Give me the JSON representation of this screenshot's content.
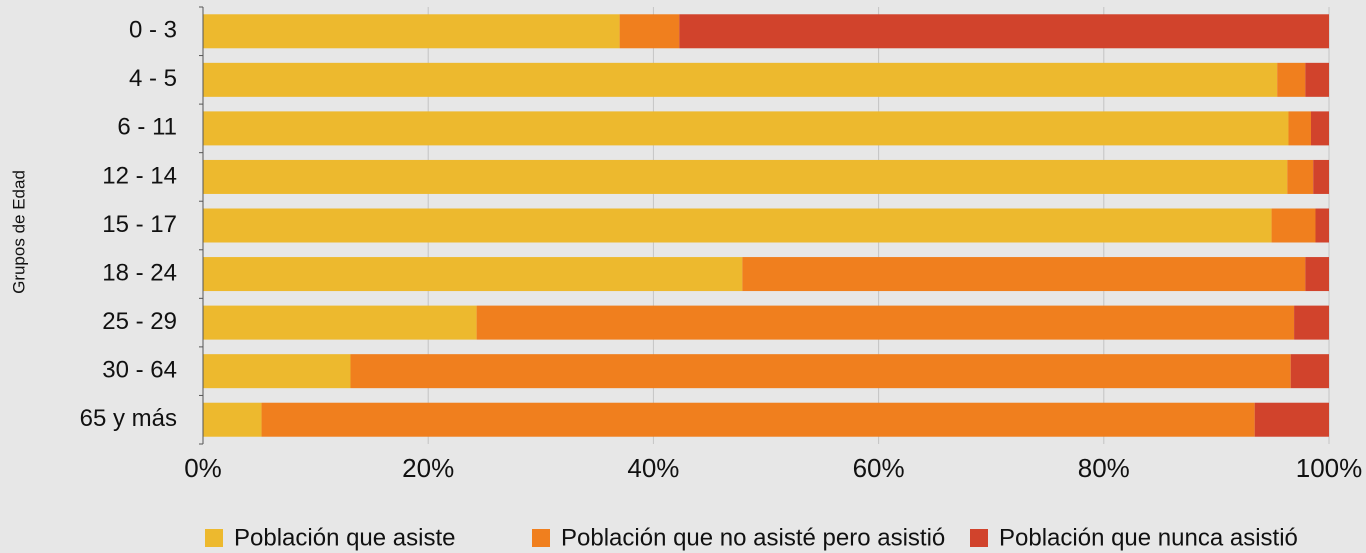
{
  "chart_data": {
    "type": "stacked_barh",
    "ylabel": "Grupos de Edad",
    "categories": [
      "0 - 3",
      "4 - 5",
      "6 - 11",
      "12 - 14",
      "15 - 17",
      "18 - 24",
      "25 - 29",
      "30 - 64",
      "65 y más"
    ],
    "series": [
      {
        "name": "Población que asiste",
        "color": "#edb92e",
        "values": [
          37.0,
          95.4,
          96.4,
          96.3,
          94.9,
          47.9,
          24.3,
          13.1,
          5.2
        ]
      },
      {
        "name": "Población que no asisté pero asistió",
        "color": "#f07f1e",
        "values": [
          5.3,
          2.5,
          2.0,
          2.3,
          3.9,
          50.0,
          72.6,
          83.5,
          88.2
        ]
      },
      {
        "name": "Población que nunca asistió",
        "color": "#d1432c",
        "values": [
          57.7,
          2.1,
          1.6,
          1.4,
          1.2,
          2.1,
          3.1,
          3.4,
          6.6
        ]
      }
    ],
    "xlim": [
      0,
      100
    ],
    "xticks": [
      {
        "value": 0,
        "label": "0%"
      },
      {
        "value": 20,
        "label": "20%"
      },
      {
        "value": 40,
        "label": "40%"
      },
      {
        "value": 60,
        "label": "60%"
      },
      {
        "value": 80,
        "label": "80%"
      },
      {
        "value": 100,
        "label": "100%"
      }
    ],
    "grid": true,
    "legend": "bottom"
  }
}
